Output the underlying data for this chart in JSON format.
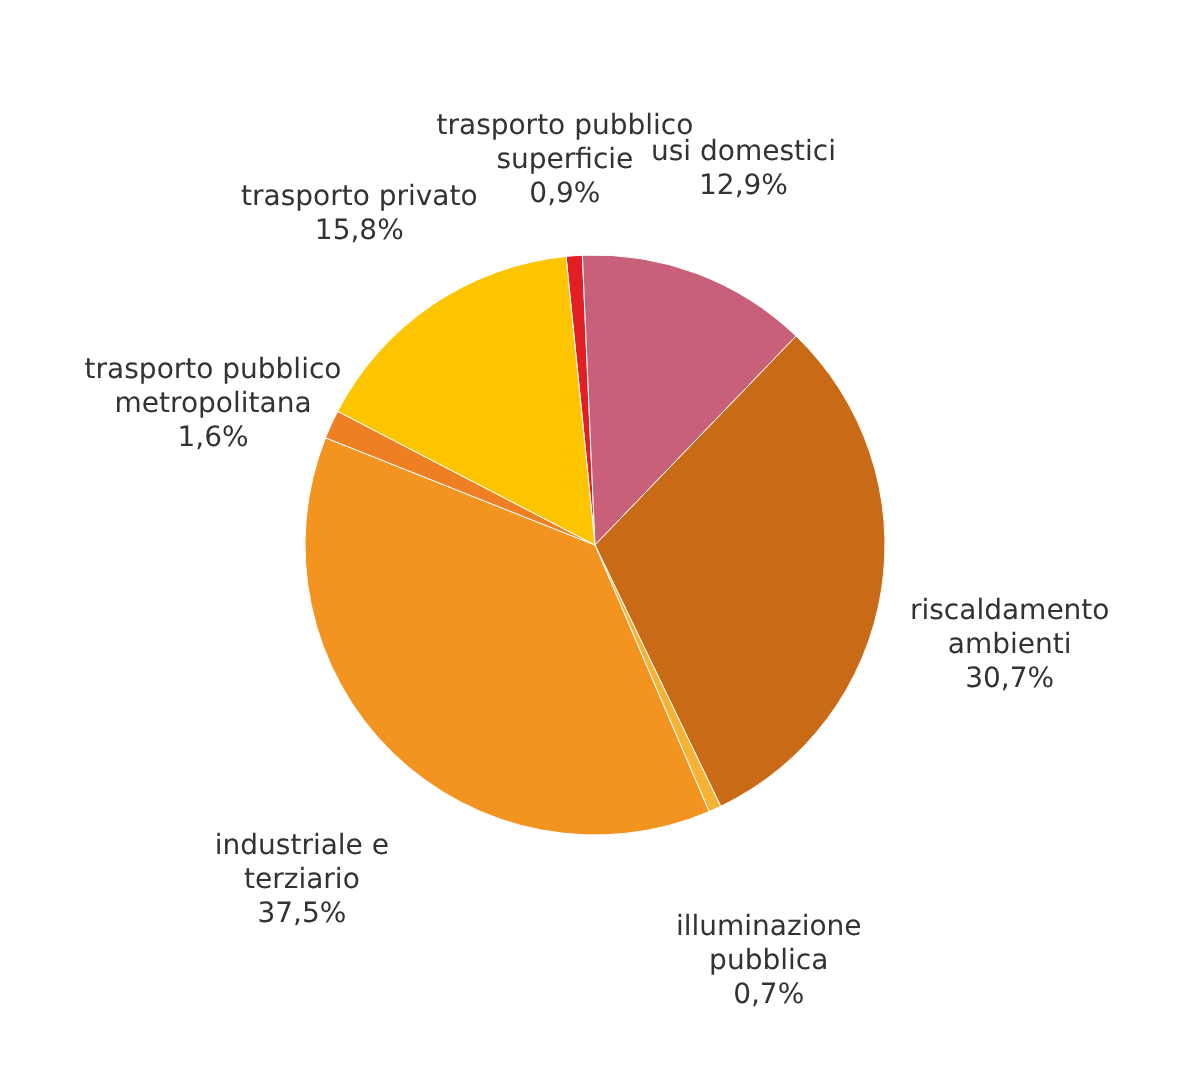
{
  "chart_data": {
    "type": "pie",
    "categories": [
      "trasporto pubblico superficie",
      "usi domestici",
      "riscaldamento ambienti",
      "illuminazione pubblica",
      "industriale e terziario",
      "trasporto pubblico metropolitana",
      "trasporto privato"
    ],
    "values": [
      0.9,
      12.9,
      30.7,
      0.7,
      37.5,
      1.6,
      15.8
    ],
    "value_labels": [
      "0,9%",
      "12,9%",
      "30,7%",
      "0,7%",
      "37,5%",
      "1,6%",
      "15,8%"
    ],
    "colors": [
      "#e31e24",
      "#c8607a",
      "#c96a16",
      "#f5b335",
      "#f39320",
      "#ee7f22",
      "#fcc500"
    ],
    "legend": false
  }
}
